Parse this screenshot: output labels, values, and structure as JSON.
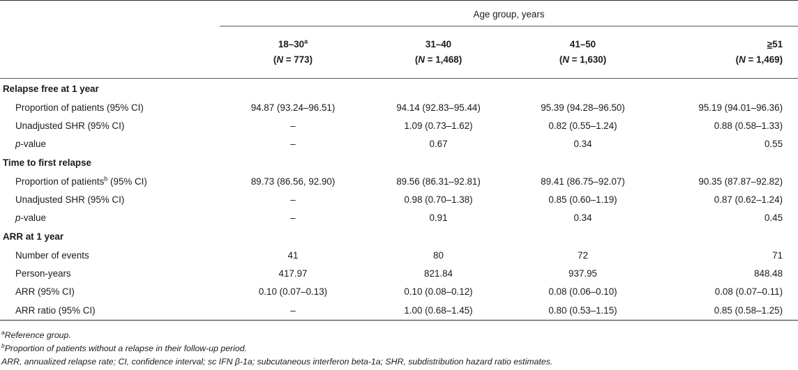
{
  "header": {
    "age_group_title": "Age group, years",
    "groups": [
      {
        "label": "18–30",
        "label_sup": "a",
        "n_prefix": "(",
        "n_letter": "N",
        "n_rest": " = 773)"
      },
      {
        "label": "31–40",
        "label_sup": "",
        "n_prefix": "(",
        "n_letter": "N",
        "n_rest": " = 1,468)"
      },
      {
        "label": "41–50",
        "label_sup": "",
        "n_prefix": "(",
        "n_letter": "N",
        "n_rest": " = 1,630)"
      },
      {
        "label_pre": "≥",
        "label": "51",
        "label_sup": "",
        "n_prefix": "(",
        "n_letter": "N",
        "n_rest": " = 1,469)"
      }
    ]
  },
  "sections": [
    {
      "title": "Relapse free at 1 year",
      "rows": [
        {
          "label": "Proportion of patients (95% CI)",
          "values": [
            "94.87 (93.24–96.51)",
            "94.14 (92.83–95.44)",
            "95.39 (94.28–96.50)",
            "95.19 (94.01–96.36)"
          ]
        },
        {
          "label": "Unadjusted SHR (95% CI)",
          "values": [
            "–",
            "1.09 (0.73–1.62)",
            "0.82 (0.55–1.24)",
            "0.88 (0.58–1.33)"
          ]
        },
        {
          "label_italic": "p",
          "label_rest": "-value",
          "values": [
            "–",
            "0.67",
            "0.34",
            "0.55"
          ]
        }
      ]
    },
    {
      "title": "Time to first relapse",
      "rows": [
        {
          "label": "Proportion of patients",
          "label_sup": "b",
          "label_after": " (95% CI)",
          "values": [
            "89.73 (86.56, 92.90)",
            "89.56 (86.31–92.81)",
            "89.41 (86.75–92.07)",
            "90.35 (87.87–92.82)"
          ]
        },
        {
          "label": "Unadjusted SHR (95% CI)",
          "values": [
            "–",
            "0.98 (0.70–1.38)",
            "0.85 (0.60–1.19)",
            "0.87 (0.62–1.24)"
          ]
        },
        {
          "label_italic": "p",
          "label_rest": "-value",
          "values": [
            "–",
            "0.91",
            "0.34",
            "0.45"
          ]
        }
      ]
    },
    {
      "title": "ARR at 1 year",
      "rows": [
        {
          "label": "Number of events",
          "values": [
            "41",
            "80",
            "72",
            "71"
          ]
        },
        {
          "label": "Person-years",
          "values": [
            "417.97",
            "821.84",
            "937.95",
            "848.48"
          ]
        },
        {
          "label": "ARR (95% CI)",
          "values": [
            "0.10 (0.07–0.13)",
            "0.10 (0.08–0.12)",
            "0.08 (0.06–0.10)",
            "0.08 (0.07–0.11)"
          ]
        },
        {
          "label": "ARR ratio (95% CI)",
          "values": [
            "–",
            "1.00 (0.68–1.45)",
            "0.80 (0.53–1.15)",
            "0.85 (0.58–1.25)"
          ]
        }
      ]
    }
  ],
  "footnotes": [
    {
      "sup": "a",
      "text": "Reference group."
    },
    {
      "sup": "b",
      "text": "Proportion of patients without a relapse in their follow-up period."
    },
    {
      "sup": "",
      "text": "ARR, annualized relapse rate; CI, confidence interval; sc IFN β-1a; subcutaneous interferon beta-1a; SHR, subdistribution hazard ratio estimates."
    }
  ]
}
